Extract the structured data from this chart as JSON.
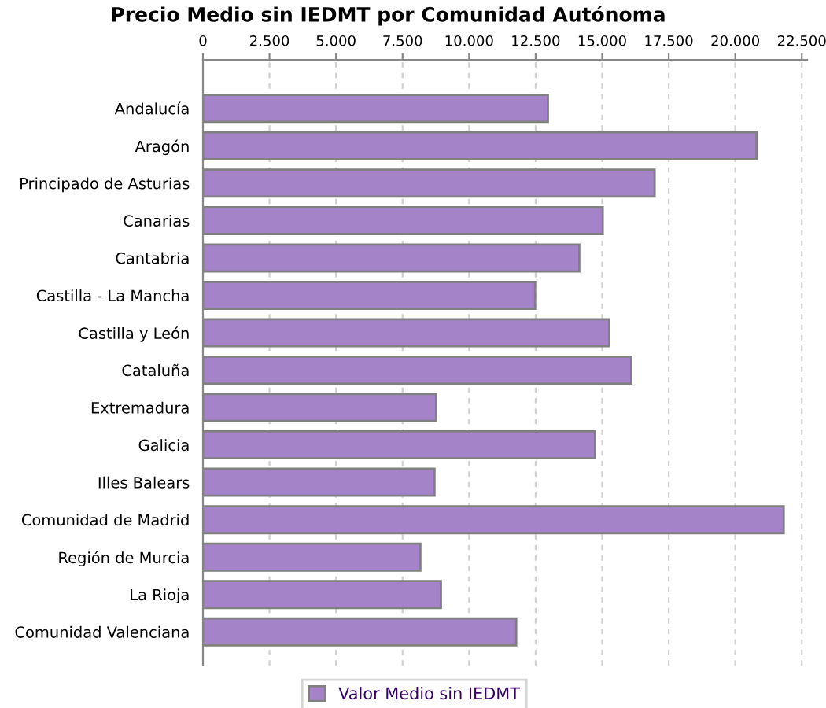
{
  "chart_data": {
    "type": "bar",
    "orientation": "horizontal",
    "title": "Precio Medio sin IEDMT por Comunidad Autónoma",
    "categories": [
      "Andalucía",
      "Aragón",
      "Principado de Asturias",
      "Canarias",
      "Cantabria",
      "Castilla - La Mancha",
      "Castilla y León",
      "Cataluña",
      "Extremadura",
      "Galicia",
      "Illes Balears",
      "Comunidad de Madrid",
      "Región de Murcia",
      "La Rioja",
      "Comunidad Valenciana"
    ],
    "series": [
      {
        "name": "Valor Medio sin IEDMT",
        "color": "#a583c8",
        "values": [
          12960,
          20800,
          16970,
          15020,
          14140,
          12480,
          15260,
          16090,
          8760,
          14730,
          8700,
          21820,
          8170,
          8940,
          11770
        ]
      }
    ],
    "xlim": [
      0,
      22700
    ],
    "xticks": [
      {
        "value": 0,
        "label": "0"
      },
      {
        "value": 2500,
        "label": "2.500"
      },
      {
        "value": 5000,
        "label": "5.000"
      },
      {
        "value": 7500,
        "label": "7.500"
      },
      {
        "value": 10000,
        "label": "10.000"
      },
      {
        "value": 12500,
        "label": "12.500"
      },
      {
        "value": 15000,
        "label": "15.000"
      },
      {
        "value": 17500,
        "label": "17.500"
      },
      {
        "value": 20000,
        "label": "20.000"
      },
      {
        "value": 22500,
        "label": "22.500"
      }
    ],
    "grid": "x",
    "legend": "bottom"
  }
}
